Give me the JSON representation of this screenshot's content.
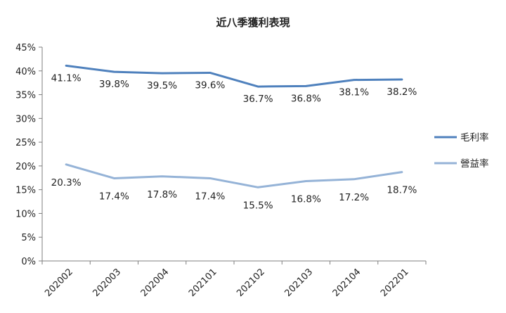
{
  "chart_data": {
    "type": "line",
    "title": "近八季獲利表現",
    "categories": [
      "202002",
      "202003",
      "202004",
      "202101",
      "202102",
      "202103",
      "202104",
      "202201"
    ],
    "series": [
      {
        "name": "毛利率",
        "values": [
          41.1,
          39.8,
          39.5,
          39.6,
          36.7,
          36.8,
          38.1,
          38.2
        ],
        "labels": [
          "41.1%",
          "39.8%",
          "39.5%",
          "39.6%",
          "36.7%",
          "36.8%",
          "38.1%",
          "38.2%"
        ],
        "color": "#4f81bd"
      },
      {
        "name": "營益率",
        "values": [
          20.3,
          17.4,
          17.8,
          17.4,
          15.5,
          16.8,
          17.2,
          18.7
        ],
        "labels": [
          "20.3%",
          "17.4%",
          "17.8%",
          "17.4%",
          "15.5%",
          "16.8%",
          "17.2%",
          "18.7%"
        ],
        "color": "#95b3d7"
      }
    ],
    "ylim": [
      0,
      45
    ],
    "yticks": [
      "0%",
      "5%",
      "10%",
      "15%",
      "20%",
      "25%",
      "30%",
      "35%",
      "40%",
      "45%"
    ],
    "grid": false,
    "legend": "right"
  }
}
